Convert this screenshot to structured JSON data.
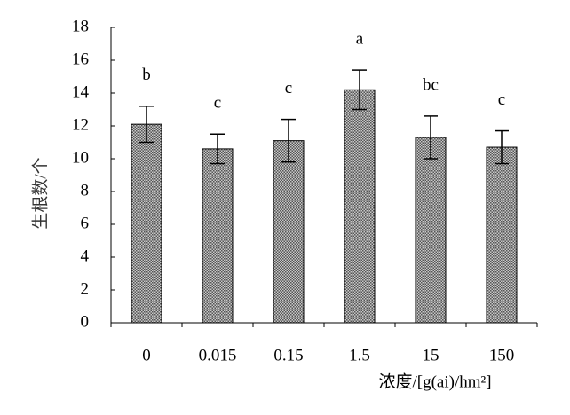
{
  "chart_data": {
    "type": "bar",
    "xlabel": "浓度/[g(ai)/hm²]",
    "ylabel": "生根数/个",
    "categories": [
      "0",
      "0.015",
      "0.15",
      "1.5",
      "15",
      "150"
    ],
    "values": [
      12.1,
      10.6,
      11.1,
      14.2,
      11.3,
      10.7
    ],
    "errors": [
      1.1,
      0.9,
      1.3,
      1.2,
      1.3,
      1.0
    ],
    "annotations": [
      "b",
      "c",
      "c",
      "a",
      "bc",
      "c"
    ],
    "color": "#8c8c8c",
    "ylim": [
      0,
      18
    ],
    "yticks": [
      0,
      2,
      4,
      6,
      8,
      10,
      12,
      14,
      16,
      18
    ]
  }
}
